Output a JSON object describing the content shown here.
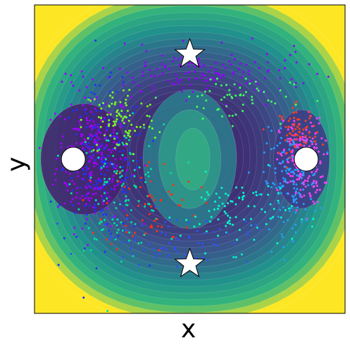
{
  "chart_data": {
    "type": "scatter",
    "background": "contour",
    "xlabel": "x",
    "ylabel": "y",
    "xlim": [
      -1.0,
      1.0
    ],
    "ylim": [
      -1.0,
      1.0
    ],
    "grid": false,
    "colormap_contour": [
      "#440154",
      "#3b528b",
      "#21918c",
      "#35b779",
      "#fde725"
    ],
    "landmarks": [
      {
        "kind": "circle",
        "x": -0.75,
        "y": 0.0,
        "color": "#ffffff"
      },
      {
        "kind": "circle",
        "x": 0.75,
        "y": 0.0,
        "color": "#ffffff"
      },
      {
        "kind": "star",
        "x": 0.0,
        "y": 0.68,
        "color": "#ffffff"
      },
      {
        "kind": "star",
        "x": 0.0,
        "y": -0.68,
        "color": "#ffffff"
      }
    ],
    "scatter_clusters": [
      {
        "color": "#a000ff",
        "cx": -0.62,
        "cy": 0.02,
        "sx": 0.12,
        "sy": 0.22,
        "n": 260
      },
      {
        "color": "#2030ff",
        "cx": -0.55,
        "cy": -0.05,
        "sx": 0.13,
        "sy": 0.25,
        "n": 200
      },
      {
        "color": "#00e0a0",
        "cx": -0.45,
        "cy": -0.18,
        "sx": 0.14,
        "sy": 0.2,
        "n": 120
      },
      {
        "color": "#80ff20",
        "cx": -0.45,
        "cy": 0.25,
        "sx": 0.12,
        "sy": 0.12,
        "n": 90
      },
      {
        "color": "#ff3010",
        "cx": -0.25,
        "cy": -0.3,
        "sx": 0.15,
        "sy": 0.15,
        "n": 60
      },
      {
        "color": "#ff40ff",
        "cx": 0.72,
        "cy": -0.02,
        "sx": 0.07,
        "sy": 0.14,
        "n": 200
      },
      {
        "color": "#20a0ff",
        "cx": 0.65,
        "cy": -0.15,
        "sx": 0.09,
        "sy": 0.16,
        "n": 140
      },
      {
        "color": "#ff4020",
        "cx": 0.7,
        "cy": 0.18,
        "sx": 0.06,
        "sy": 0.08,
        "n": 70
      },
      {
        "color": "#00ffd0",
        "cx": 0.3,
        "cy": -0.35,
        "sx": 0.18,
        "sy": 0.12,
        "n": 90
      },
      {
        "color": "#9000ff",
        "cx": 0.1,
        "cy": 0.55,
        "sx": 0.35,
        "sy": 0.08,
        "n": 150
      },
      {
        "color": "#3050ff",
        "cx": -0.1,
        "cy": -0.52,
        "sx": 0.25,
        "sy": 0.08,
        "n": 70
      },
      {
        "color": "#40ff60",
        "cx": 0.25,
        "cy": 0.4,
        "sx": 0.2,
        "sy": 0.08,
        "n": 60
      }
    ]
  }
}
